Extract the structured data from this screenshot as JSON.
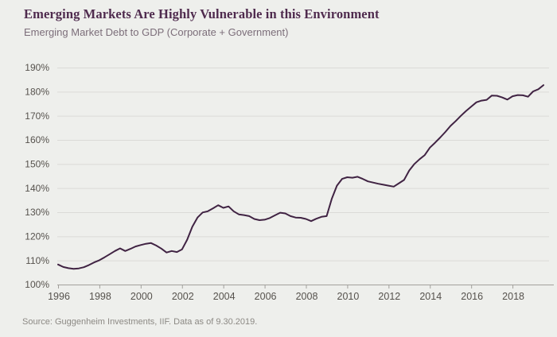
{
  "header": {
    "title": "Emerging Markets Are Highly Vulnerable in this Environment",
    "subtitle": "Emerging Market Debt to GDP (Corporate + Government)"
  },
  "footer": {
    "source": "Source: Guggenheim Investments, IIF. Data as of 9.30.2019."
  },
  "theme": {
    "background": "#eeefec",
    "title_color": "#4f2b4e",
    "subtitle_color": "#7c6e7a",
    "line_color": "#402343",
    "grid_color": "#dbdad7",
    "axis_color": "#a2a09c",
    "tick_label_color": "#56524d",
    "source_color": "#8c8984"
  },
  "chart_data": {
    "type": "line",
    "title": "Emerging Markets Are Highly Vulnerable in this Environment",
    "subtitle": "Emerging Market Debt to GDP (Corporate + Government)",
    "source": "Source: Guggenheim Investments, IIF. Data as of 9.30.2019.",
    "xlabel": "",
    "ylabel": "",
    "ylim": [
      100,
      190
    ],
    "xlim": [
      1996,
      2020
    ],
    "y_ticks": [
      100,
      110,
      120,
      130,
      140,
      150,
      160,
      170,
      180,
      190
    ],
    "y_tick_suffix": "%",
    "x_tick_years": [
      1996,
      1998,
      2000,
      2002,
      2004,
      2006,
      2008,
      2010,
      2012,
      2014,
      2016,
      2018
    ],
    "grid": "horizontal-only",
    "legend": "none",
    "x_start_year": 1996,
    "x_step_years": 0.25,
    "frequency": "quarterly, 1996 Q1 through 2019 Q3",
    "series": [
      {
        "name": "Emerging Market Debt to GDP (Corporate + Government)",
        "unit": "% of GDP",
        "values": [
          108.3,
          107.3,
          106.8,
          106.5,
          106.7,
          107.2,
          108.1,
          109.2,
          110.1,
          111.3,
          112.6,
          113.9,
          115.0,
          113.9,
          114.8,
          115.8,
          116.4,
          116.9,
          117.2,
          116.2,
          114.9,
          113.3,
          113.9,
          113.5,
          114.6,
          118.6,
          124.0,
          127.8,
          129.9,
          130.4,
          131.6,
          132.9,
          131.8,
          132.4,
          130.4,
          129.1,
          128.8,
          128.4,
          127.2,
          126.7,
          126.9,
          127.6,
          128.7,
          129.8,
          129.5,
          128.4,
          127.8,
          127.7,
          127.2,
          126.3,
          127.3,
          128.1,
          128.4,
          135.5,
          141.0,
          143.8,
          144.5,
          144.3,
          144.7,
          143.8,
          142.8,
          142.3,
          141.8,
          141.4,
          141.0,
          140.6,
          142.0,
          143.4,
          147.3,
          150.0,
          152.0,
          153.7,
          156.8,
          158.8,
          161.0,
          163.3,
          165.8,
          167.8,
          170.0,
          172.0,
          173.8,
          175.6,
          176.3,
          176.6,
          178.4,
          178.3,
          177.6,
          176.7,
          178.1,
          178.6,
          178.5,
          177.9,
          180.1,
          181.0,
          182.7
        ]
      }
    ]
  }
}
